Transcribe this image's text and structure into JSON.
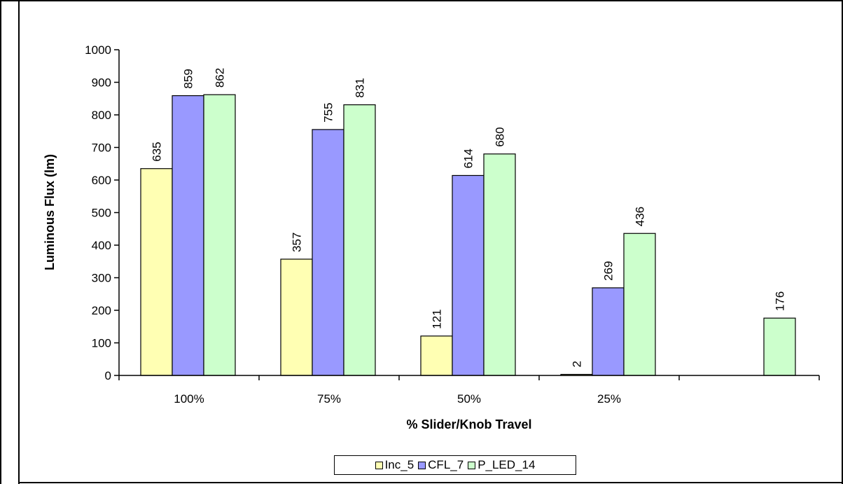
{
  "chart_data": {
    "type": "bar",
    "title": "",
    "xlabel": "% Slider/Knob Travel",
    "ylabel": "Luminous Flux (lm)",
    "ylim": [
      0,
      1000
    ],
    "yticks": [
      0,
      100,
      200,
      300,
      400,
      500,
      600,
      700,
      800,
      900,
      1000
    ],
    "categories": [
      "100%",
      "75%",
      "50%",
      "25%",
      ""
    ],
    "series": [
      {
        "name": "Inc_5",
        "color": "#ffffb3",
        "values": [
          635,
          357,
          121,
          2,
          null
        ]
      },
      {
        "name": "CFL_7",
        "color": "#9999ff",
        "values": [
          859,
          755,
          614,
          269,
          null
        ]
      },
      {
        "name": "P_LED_14",
        "color": "#ccffcc",
        "values": [
          862,
          831,
          680,
          436,
          176
        ]
      }
    ],
    "grid": false,
    "legend": "bottom"
  }
}
